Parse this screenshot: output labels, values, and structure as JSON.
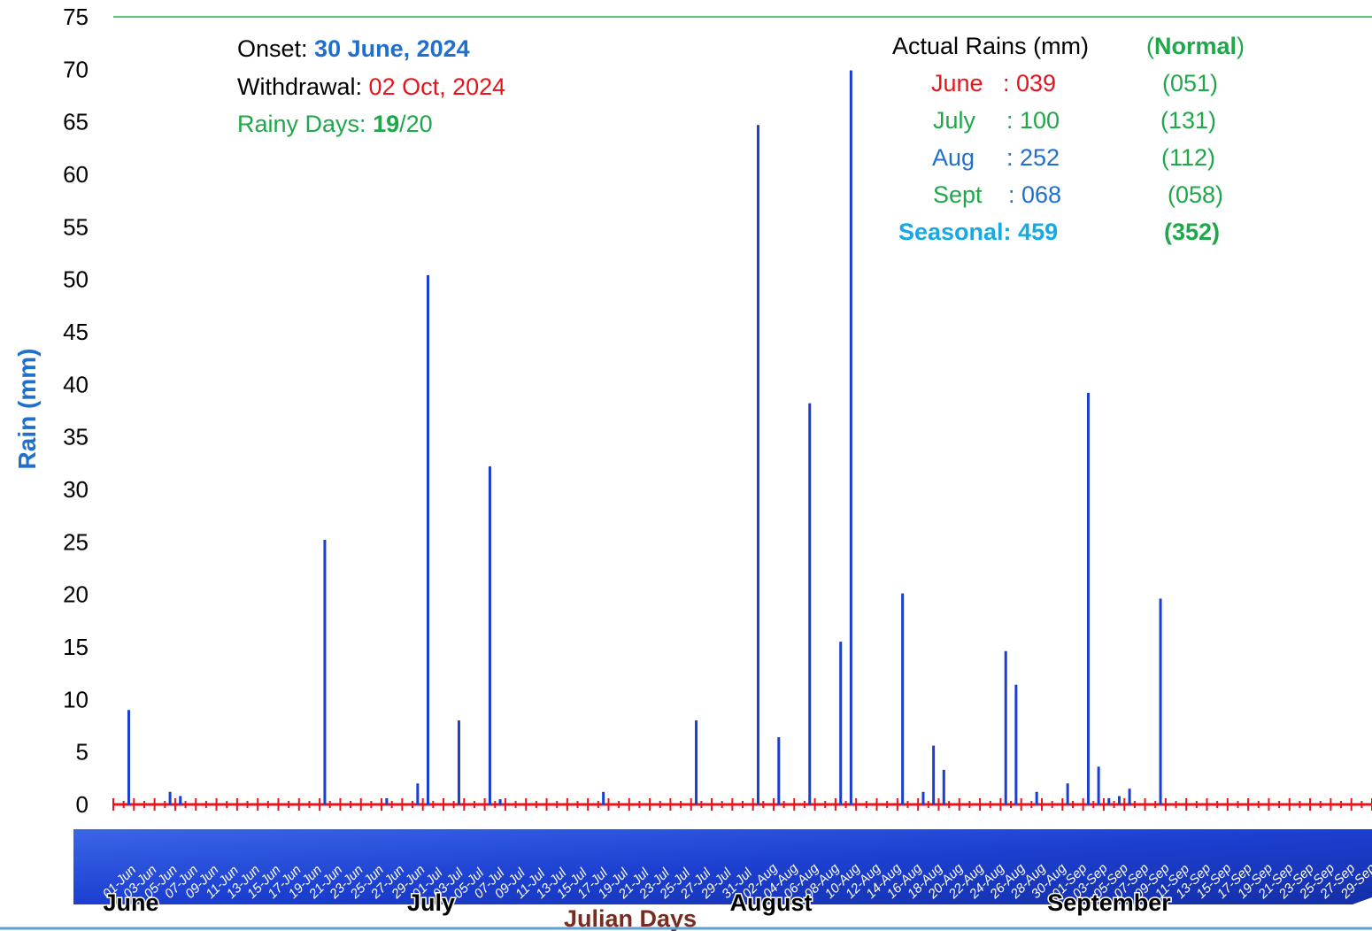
{
  "chart_data": {
    "type": "bar",
    "ylabel": "Rain (mm)",
    "xlabel": "Julian Days",
    "ylim": [
      0,
      75
    ],
    "yticks": [
      0,
      5,
      10,
      15,
      20,
      25,
      30,
      35,
      40,
      45,
      50,
      55,
      60,
      65,
      70,
      75
    ],
    "x_range": [
      "01-Jun",
      "30-Sep"
    ],
    "x_tick_labels": [
      "01-Jun",
      "03-Jun",
      "05-Jun",
      "07-Jun",
      "09-Jun",
      "11-Jun",
      "13-Jun",
      "15-Jun",
      "17-Jun",
      "19-Jun",
      "21-Jun",
      "23-Jun",
      "25-Jun",
      "27-Jun",
      "29-Jun",
      "01-Jul",
      "03-Jul",
      "05-Jul",
      "07-Jul",
      "09-Jul",
      "11-Jul",
      "13-Jul",
      "15-Jul",
      "17-Jul",
      "19-Jul",
      "21-Jul",
      "23-Jul",
      "25-Jul",
      "27-Jul",
      "29-Jul",
      "31-Jul",
      "02-Aug",
      "04-Aug",
      "06-Aug",
      "08-Aug",
      "10-Aug",
      "12-Aug",
      "14-Aug",
      "16-Aug",
      "18-Aug",
      "20-Aug",
      "22-Aug",
      "24-Aug",
      "26-Aug",
      "28-Aug",
      "30-Aug",
      "01-Sep",
      "03-Sep",
      "05-Sep",
      "07-Sep",
      "09-Sep",
      "11-Sep",
      "13-Sep",
      "15-Sep",
      "17-Sep",
      "19-Sep",
      "21-Sep",
      "23-Sep",
      "25-Sep",
      "27-Sep",
      "29-Sep"
    ],
    "month_labels": [
      "June",
      "July",
      "August",
      "September"
    ],
    "series": [
      {
        "color": "#1a3fcf",
        "points": [
          {
            "x": "02-Jun",
            "y": 9.0
          },
          {
            "x": "06-Jun",
            "y": 1.2
          },
          {
            "x": "07-Jun",
            "y": 0.8
          },
          {
            "x": "21-Jun",
            "y": 25.2
          },
          {
            "x": "27-Jun",
            "y": 0.6
          },
          {
            "x": "30-Jun",
            "y": 2.0
          },
          {
            "x": "01-Jul",
            "y": 50.4
          },
          {
            "x": "04-Jul",
            "y": 8.0
          },
          {
            "x": "07-Jul",
            "y": 32.2
          },
          {
            "x": "08-Jul",
            "y": 0.5
          },
          {
            "x": "18-Jul",
            "y": 1.2
          },
          {
            "x": "27-Jul",
            "y": 8.0
          },
          {
            "x": "02-Aug",
            "y": 64.7
          },
          {
            "x": "04-Aug",
            "y": 6.4
          },
          {
            "x": "07-Aug",
            "y": 38.2
          },
          {
            "x": "10-Aug",
            "y": 15.5
          },
          {
            "x": "11-Aug",
            "y": 69.9
          },
          {
            "x": "16-Aug",
            "y": 20.1
          },
          {
            "x": "18-Aug",
            "y": 1.2
          },
          {
            "x": "19-Aug",
            "y": 5.6
          },
          {
            "x": "20-Aug",
            "y": 3.3
          },
          {
            "x": "26-Aug",
            "y": 14.6
          },
          {
            "x": "27-Aug",
            "y": 11.4
          },
          {
            "x": "29-Aug",
            "y": 1.2
          },
          {
            "x": "01-Sep",
            "y": 2.0
          },
          {
            "x": "03-Sep",
            "y": 39.2
          },
          {
            "x": "04-Sep",
            "y": 3.6
          },
          {
            "x": "05-Sep",
            "y": 0.6
          },
          {
            "x": "06-Sep",
            "y": 0.8
          },
          {
            "x": "07-Sep",
            "y": 1.5
          },
          {
            "x": "10-Sep",
            "y": 19.6
          }
        ]
      }
    ],
    "grid": false,
    "legend": "none"
  },
  "colors": {
    "bar": "#1a3fcf",
    "red": "#e8141b",
    "green": "#1fa84a",
    "blue": "#1f6fcf",
    "cyan": "#17a9e6",
    "brown": "#7a2b20",
    "top_line": "#25b04a",
    "band": "#1c3fd0"
  },
  "annotations": {
    "onset_label": "Onset: ",
    "onset_value": "30 June, 2024",
    "withdrawal_label": "Withdrawal: ",
    "withdrawal_value": "02 Oct, 2024",
    "rainy_label": "Rainy Days: ",
    "rainy_value": "19",
    "rainy_total": "/20",
    "actual_header": "Actual Rains (mm)",
    "normal_open": "(",
    "normal_word": "Normal",
    "normal_close": ")",
    "months": [
      {
        "name": "June",
        "sep": ": ",
        "actual": "039",
        "normal": "(051)"
      },
      {
        "name": "July",
        "sep": ": ",
        "actual": "100",
        "normal": "(131)"
      },
      {
        "name": "Aug",
        "sep": ": ",
        "actual": "252",
        "normal": "(112)"
      },
      {
        "name": "Sept",
        "sep": ": ",
        "actual": "068",
        "normal": "(058)"
      }
    ],
    "seasonal_label": "Seasonal: 459",
    "seasonal_normal": "(352)"
  }
}
